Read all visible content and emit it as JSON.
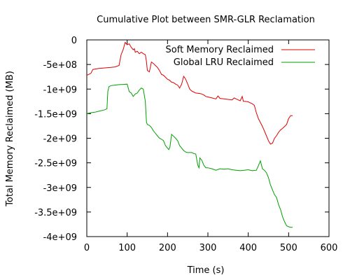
{
  "chart_data": {
    "type": "line",
    "title": "Cumulative Plot between SMR-GLR Reclamation",
    "xlabel": "Time (s)",
    "ylabel": "Total Memory Reclaimed (MB)",
    "xlim": [
      0,
      600
    ],
    "ylim": [
      -4000000000,
      0
    ],
    "x_ticks": [
      0,
      100,
      200,
      300,
      400,
      500,
      600
    ],
    "y_ticks": [
      0,
      -500000000,
      -1000000000,
      -1500000000,
      -2000000000,
      -2500000000,
      -3000000000,
      -3500000000,
      -4000000000
    ],
    "x_tick_labels": [
      "0",
      "100",
      "200",
      "300",
      "400",
      "500",
      "600"
    ],
    "y_tick_labels": [
      "0",
      "-5e+08",
      "-1e+09",
      "-1.5e+09",
      "-2e+09",
      "-2.5e+09",
      "-3e+09",
      "-3.5e+09",
      "-4e+09"
    ],
    "grid": false,
    "legend_position": "top-right",
    "series": [
      {
        "name": "Soft Memory Reclaimed",
        "color": "#e00000",
        "points": [
          [
            0,
            -720000000
          ],
          [
            5,
            -700000000
          ],
          [
            10,
            -680000000
          ],
          [
            15,
            -600000000
          ],
          [
            30,
            -580000000
          ],
          [
            45,
            -570000000
          ],
          [
            60,
            -560000000
          ],
          [
            70,
            -550000000
          ],
          [
            80,
            -520000000
          ],
          [
            85,
            -300000000
          ],
          [
            90,
            -200000000
          ],
          [
            95,
            -50000000
          ],
          [
            100,
            -100000000
          ],
          [
            105,
            -80000000
          ],
          [
            110,
            -150000000
          ],
          [
            115,
            -200000000
          ],
          [
            118,
            -180000000
          ],
          [
            120,
            -250000000
          ],
          [
            125,
            -230000000
          ],
          [
            130,
            -280000000
          ],
          [
            135,
            -250000000
          ],
          [
            140,
            -280000000
          ],
          [
            145,
            -300000000
          ],
          [
            148,
            -450000000
          ],
          [
            150,
            -620000000
          ],
          [
            155,
            -650000000
          ],
          [
            160,
            -450000000
          ],
          [
            165,
            -480000000
          ],
          [
            170,
            -520000000
          ],
          [
            175,
            -560000000
          ],
          [
            180,
            -620000000
          ],
          [
            185,
            -700000000
          ],
          [
            190,
            -720000000
          ],
          [
            195,
            -760000000
          ],
          [
            200,
            -800000000
          ],
          [
            205,
            -820000000
          ],
          [
            210,
            -860000000
          ],
          [
            215,
            -870000000
          ],
          [
            220,
            -900000000
          ],
          [
            225,
            -920000000
          ],
          [
            230,
            -980000000
          ],
          [
            235,
            -900000000
          ],
          [
            240,
            -740000000
          ],
          [
            245,
            -800000000
          ],
          [
            250,
            -900000000
          ],
          [
            255,
            -1000000000
          ],
          [
            260,
            -1040000000
          ],
          [
            265,
            -1060000000
          ],
          [
            270,
            -1080000000
          ],
          [
            280,
            -1090000000
          ],
          [
            285,
            -1100000000
          ],
          [
            290,
            -1120000000
          ],
          [
            295,
            -1150000000
          ],
          [
            300,
            -1160000000
          ],
          [
            310,
            -1180000000
          ],
          [
            320,
            -1200000000
          ],
          [
            325,
            -1140000000
          ],
          [
            330,
            -1190000000
          ],
          [
            340,
            -1200000000
          ],
          [
            350,
            -1210000000
          ],
          [
            360,
            -1220000000
          ],
          [
            365,
            -1180000000
          ],
          [
            370,
            -1200000000
          ],
          [
            375,
            -1220000000
          ],
          [
            380,
            -1240000000
          ],
          [
            385,
            -1150000000
          ],
          [
            388,
            -1250000000
          ],
          [
            392,
            -1250000000
          ],
          [
            400,
            -1260000000
          ],
          [
            405,
            -1280000000
          ],
          [
            410,
            -1300000000
          ],
          [
            415,
            -1330000000
          ],
          [
            420,
            -1480000000
          ],
          [
            425,
            -1600000000
          ],
          [
            430,
            -1680000000
          ],
          [
            435,
            -1760000000
          ],
          [
            440,
            -1850000000
          ],
          [
            445,
            -1950000000
          ],
          [
            450,
            -2050000000
          ],
          [
            455,
            -2120000000
          ],
          [
            460,
            -2100000000
          ],
          [
            465,
            -2000000000
          ],
          [
            470,
            -1950000000
          ],
          [
            475,
            -1880000000
          ],
          [
            480,
            -1830000000
          ],
          [
            485,
            -1800000000
          ],
          [
            490,
            -1760000000
          ],
          [
            495,
            -1720000000
          ],
          [
            500,
            -1600000000
          ],
          [
            505,
            -1540000000
          ],
          [
            510,
            -1540000000
          ]
        ]
      },
      {
        "name": "Global LRU Reclaimed",
        "color": "#00a000",
        "points": [
          [
            0,
            -1500000000
          ],
          [
            10,
            -1480000000
          ],
          [
            20,
            -1470000000
          ],
          [
            30,
            -1450000000
          ],
          [
            45,
            -1420000000
          ],
          [
            50,
            -1400000000
          ],
          [
            52,
            -1050000000
          ],
          [
            55,
            -950000000
          ],
          [
            60,
            -930000000
          ],
          [
            70,
            -920000000
          ],
          [
            80,
            -910000000
          ],
          [
            90,
            -905000000
          ],
          [
            100,
            -900000000
          ],
          [
            105,
            -1050000000
          ],
          [
            110,
            -1080000000
          ],
          [
            115,
            -1150000000
          ],
          [
            120,
            -1100000000
          ],
          [
            125,
            -1080000000
          ],
          [
            130,
            -1020000000
          ],
          [
            135,
            -980000000
          ],
          [
            140,
            -1000000000
          ],
          [
            145,
            -1250000000
          ],
          [
            148,
            -1680000000
          ],
          [
            150,
            -1720000000
          ],
          [
            155,
            -1740000000
          ],
          [
            160,
            -1780000000
          ],
          [
            165,
            -1850000000
          ],
          [
            170,
            -1900000000
          ],
          [
            175,
            -1950000000
          ],
          [
            180,
            -2000000000
          ],
          [
            185,
            -2020000000
          ],
          [
            190,
            -2050000000
          ],
          [
            195,
            -2150000000
          ],
          [
            200,
            -2200000000
          ],
          [
            203,
            -2230000000
          ],
          [
            206,
            -2180000000
          ],
          [
            210,
            -1920000000
          ],
          [
            215,
            -1960000000
          ],
          [
            220,
            -2000000000
          ],
          [
            225,
            -2050000000
          ],
          [
            230,
            -2150000000
          ],
          [
            235,
            -2200000000
          ],
          [
            240,
            -2250000000
          ],
          [
            245,
            -2280000000
          ],
          [
            250,
            -2290000000
          ],
          [
            260,
            -2290000000
          ],
          [
            265,
            -2310000000
          ],
          [
            270,
            -2320000000
          ],
          [
            275,
            -2550000000
          ],
          [
            278,
            -2600000000
          ],
          [
            280,
            -2400000000
          ],
          [
            285,
            -2450000000
          ],
          [
            290,
            -2550000000
          ],
          [
            295,
            -2600000000
          ],
          [
            300,
            -2600000000
          ],
          [
            310,
            -2620000000
          ],
          [
            320,
            -2650000000
          ],
          [
            330,
            -2620000000
          ],
          [
            340,
            -2630000000
          ],
          [
            350,
            -2620000000
          ],
          [
            360,
            -2640000000
          ],
          [
            370,
            -2650000000
          ],
          [
            380,
            -2660000000
          ],
          [
            390,
            -2650000000
          ],
          [
            400,
            -2640000000
          ],
          [
            410,
            -2660000000
          ],
          [
            420,
            -2650000000
          ],
          [
            425,
            -2560000000
          ],
          [
            430,
            -2460000000
          ],
          [
            435,
            -2620000000
          ],
          [
            440,
            -2650000000
          ],
          [
            445,
            -2700000000
          ],
          [
            450,
            -2800000000
          ],
          [
            455,
            -2950000000
          ],
          [
            460,
            -3050000000
          ],
          [
            465,
            -3150000000
          ],
          [
            470,
            -3200000000
          ],
          [
            475,
            -3350000000
          ],
          [
            480,
            -3450000000
          ],
          [
            485,
            -3600000000
          ],
          [
            490,
            -3700000000
          ],
          [
            495,
            -3780000000
          ],
          [
            500,
            -3800000000
          ],
          [
            505,
            -3810000000
          ],
          [
            510,
            -3810000000
          ]
        ]
      }
    ]
  }
}
